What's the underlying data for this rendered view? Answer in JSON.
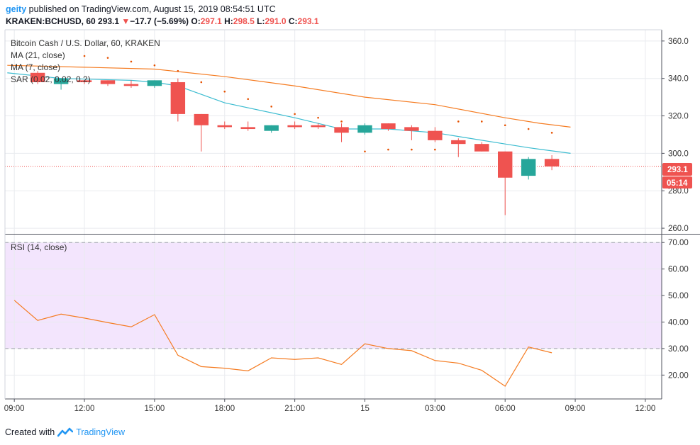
{
  "header": {
    "user": "geity",
    "published_text": "published on TradingView.com, August 15, 2019 08:54:51 UTC",
    "symbol": "KRAKEN:BCHUSD, 60",
    "last": "293.1",
    "down_arrow": "▼",
    "change": "−17.7 (−5.69%)",
    "o_label": "O:",
    "o_value": "297.1",
    "h_label": "H:",
    "h_value": "298.5",
    "l_label": "L:",
    "l_value": "291.0",
    "c_label": "C:",
    "c_value": "293.1"
  },
  "price_legend": {
    "title": "Bitcoin Cash / U.S. Dollar, 60, KRAKEN",
    "ma21": "MA (21, close)",
    "ma7": "MA (7, close)",
    "sar": "SAR (0.02, 0.02, 0.2)"
  },
  "rsi_legend": {
    "title": "RSI (14, close)"
  },
  "price_badge": "293.1",
  "countdown_badge": "05:14",
  "footer": {
    "created_with": "Created with",
    "brand": "TradingView"
  },
  "chart_data": [
    {
      "type": "candlestick",
      "title": "Bitcoin Cash / U.S. Dollar, 60, KRAKEN",
      "x_ticks": [
        "09:00",
        "12:00",
        "15:00",
        "18:00",
        "21:00",
        "15",
        "03:00",
        "06:00",
        "09:00",
        "12:00"
      ],
      "x_tick_hours": [
        0,
        3,
        6,
        9,
        12,
        15,
        18,
        21,
        24,
        27
      ],
      "y_ticks": [
        260,
        280,
        300,
        320,
        340,
        360
      ],
      "ylim": [
        257,
        366
      ],
      "xlim": [
        -0.4,
        27.7
      ],
      "candles": [
        {
          "t": 1,
          "o": 343,
          "h": 344,
          "l": 337,
          "c": 338
        },
        {
          "t": 2,
          "o": 337,
          "h": 339,
          "l": 334,
          "c": 340
        },
        {
          "t": 3,
          "o": 339,
          "h": 339,
          "l": 337,
          "c": 338
        },
        {
          "t": 4,
          "o": 339,
          "h": 339,
          "l": 336,
          "c": 337
        },
        {
          "t": 5,
          "o": 337,
          "h": 339,
          "l": 335,
          "c": 336
        },
        {
          "t": 6,
          "o": 336,
          "h": 339,
          "l": 335,
          "c": 339
        },
        {
          "t": 7,
          "o": 338,
          "h": 340,
          "l": 317,
          "c": 321
        },
        {
          "t": 8,
          "o": 321,
          "h": 321,
          "l": 301,
          "c": 315
        },
        {
          "t": 9,
          "o": 315,
          "h": 317,
          "l": 313,
          "c": 314
        },
        {
          "t": 10,
          "o": 314,
          "h": 317,
          "l": 312,
          "c": 313
        },
        {
          "t": 11,
          "o": 312,
          "h": 315,
          "l": 311,
          "c": 315
        },
        {
          "t": 12,
          "o": 315,
          "h": 317,
          "l": 313,
          "c": 314
        },
        {
          "t": 13,
          "o": 315,
          "h": 316,
          "l": 313,
          "c": 314
        },
        {
          "t": 14,
          "o": 314,
          "h": 316,
          "l": 306,
          "c": 311
        },
        {
          "t": 15,
          "o": 311,
          "h": 316,
          "l": 310,
          "c": 315
        },
        {
          "t": 16,
          "o": 316,
          "h": 316,
          "l": 312,
          "c": 313
        },
        {
          "t": 17,
          "o": 314,
          "h": 315,
          "l": 307,
          "c": 312
        },
        {
          "t": 18,
          "o": 312,
          "h": 314,
          "l": 306,
          "c": 307
        },
        {
          "t": 19,
          "o": 307,
          "h": 308,
          "l": 298,
          "c": 305
        },
        {
          "t": 20,
          "o": 305,
          "h": 306,
          "l": 301,
          "c": 301
        },
        {
          "t": 21,
          "o": 301,
          "h": 301,
          "l": 267,
          "c": 287
        },
        {
          "t": 22,
          "o": 288,
          "h": 298,
          "l": 286,
          "c": 297
        },
        {
          "t": 23,
          "o": 297,
          "h": 299,
          "l": 291,
          "c": 293
        }
      ],
      "series": [
        {
          "name": "MA (21, close)",
          "color": "#f57c22",
          "points": [
            [
              -0.3,
              347
            ],
            [
              3,
              346
            ],
            [
              6,
              345
            ],
            [
              9,
              341
            ],
            [
              12,
              336
            ],
            [
              15,
              330
            ],
            [
              18,
              326
            ],
            [
              21,
              319
            ],
            [
              22.5,
              316
            ],
            [
              23.8,
              314
            ]
          ]
        },
        {
          "name": "MA (7, close)",
          "color": "#3cbcd0",
          "points": [
            [
              -0.3,
              343
            ],
            [
              2,
              340
            ],
            [
              5,
              339
            ],
            [
              6,
              338
            ],
            [
              7,
              336
            ],
            [
              9,
              327
            ],
            [
              12,
              319
            ],
            [
              14,
              313
            ],
            [
              16,
              313
            ],
            [
              18,
              311
            ],
            [
              19,
              309
            ],
            [
              21,
              305
            ],
            [
              22,
              303
            ],
            [
              23.8,
              300
            ]
          ]
        },
        {
          "name": "SAR (0.02, 0.02, 0.2)",
          "color": "#e65100",
          "style": "dots",
          "points": [
            [
              3,
              352
            ],
            [
              4,
              351
            ],
            [
              5,
              349
            ],
            [
              6,
              347
            ],
            [
              7,
              344
            ],
            [
              8,
              338
            ],
            [
              9,
              333
            ],
            [
              10,
              329
            ],
            [
              11,
              325
            ],
            [
              12,
              321
            ],
            [
              13,
              319
            ],
            [
              14,
              317
            ],
            [
              15,
              301
            ],
            [
              16,
              302
            ],
            [
              17,
              302
            ],
            [
              18,
              302
            ],
            [
              19,
              317
            ],
            [
              20,
              317
            ],
            [
              21,
              315
            ],
            [
              22,
              313
            ],
            [
              23,
              311
            ]
          ]
        }
      ],
      "last_price": 293.1
    },
    {
      "type": "line",
      "title": "RSI (14, close)",
      "y_ticks": [
        20,
        30,
        40,
        50,
        60,
        70
      ],
      "ylim": [
        11,
        73
      ],
      "band": [
        30,
        70
      ],
      "band_color": "#f3e5fd",
      "series": [
        {
          "name": "RSI (14, close)",
          "color": "#f57c22",
          "points": [
            [
              0,
              48.2
            ],
            [
              1,
              40.6
            ],
            [
              2,
              43
            ],
            [
              3,
              41.5
            ],
            [
              4,
              39.8
            ],
            [
              5,
              38.2
            ],
            [
              6,
              42.8
            ],
            [
              7,
              27.5
            ],
            [
              8,
              23.2
            ],
            [
              9,
              22.6
            ],
            [
              10,
              21.6
            ],
            [
              11,
              26.5
            ],
            [
              12,
              25.9
            ],
            [
              13,
              26.5
            ],
            [
              14,
              24
            ],
            [
              15,
              31.8
            ],
            [
              16,
              30
            ],
            [
              17,
              29.2
            ],
            [
              18,
              25.5
            ],
            [
              19,
              24.5
            ],
            [
              20,
              21.8
            ],
            [
              21,
              15.8
            ],
            [
              22,
              30.6
            ],
            [
              23,
              28.4
            ]
          ]
        }
      ]
    }
  ],
  "colors": {
    "up": "#26a69a",
    "down": "#ef5350",
    "grid": "#e9ebef",
    "axis": "#50535e",
    "ma21": "#f57c22",
    "ma7": "#3cbcd0",
    "sar": "#e65100",
    "rsi": "#f57c22"
  }
}
